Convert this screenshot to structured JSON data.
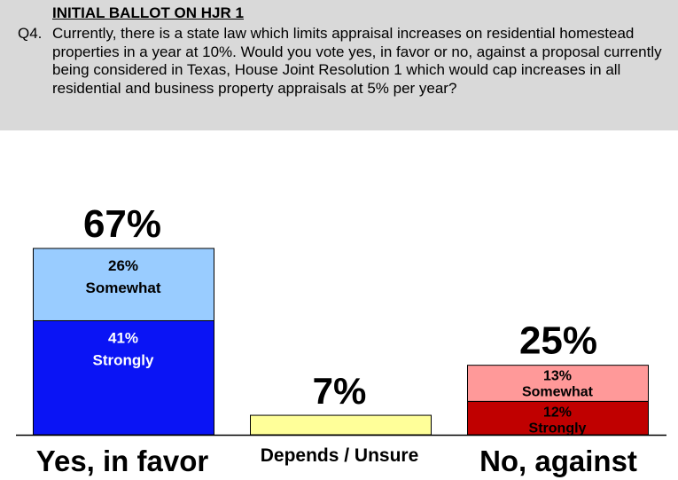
{
  "header": {
    "title": "INITIAL BALLOT ON HJR 1",
    "question_number": "Q4.",
    "question_text": "Currently, there is a state law which limits appraisal increases on residential homestead properties in a year at 10%.  Would you vote yes, in favor or no, against a proposal currently being considered in Texas, House Joint Resolution 1 which would cap increases in all residential and business property appraisals at 5% per year?"
  },
  "chart_data": {
    "type": "bar",
    "stacked": true,
    "categories": [
      "Yes, in favor",
      "Depends / Unsure",
      "No, against"
    ],
    "totals": [
      67,
      7,
      25
    ],
    "total_labels": [
      "67%",
      "7%",
      "25%"
    ],
    "segments": [
      [
        {
          "value": 41,
          "label_value": "41%",
          "label_text": "Strongly",
          "color": "#0a14f5"
        },
        {
          "value": 26,
          "label_value": "26%",
          "label_text": "Somewhat",
          "color": "#99ccff"
        }
      ],
      [
        {
          "value": 7,
          "label_value": "",
          "label_text": "",
          "color": "#ffff99"
        }
      ],
      [
        {
          "value": 12,
          "label_value": "12%",
          "label_text": "Strongly",
          "color": "#c00000"
        },
        {
          "value": 13,
          "label_value": "13%",
          "label_text": "Somewhat",
          "color": "#ff9999"
        }
      ]
    ],
    "ylim": [
      0,
      70
    ],
    "grid": false,
    "legend": "none"
  }
}
